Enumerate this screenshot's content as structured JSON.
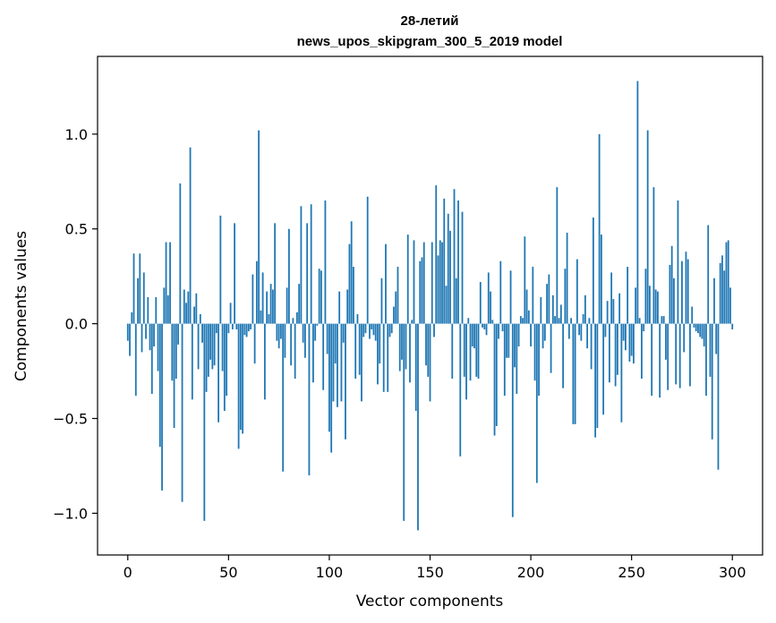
{
  "chart_data": {
    "type": "bar",
    "title_line1": "28-летий",
    "title_line2": "news_upos_skipgram_300_5_2019 model",
    "xlabel": "Vector components",
    "ylabel": "Components values",
    "xlim": [
      -15,
      315
    ],
    "ylim": [
      -1.22,
      1.41
    ],
    "xticks": [
      0,
      50,
      100,
      150,
      200,
      250,
      300
    ],
    "xtick_labels": [
      "0",
      "50",
      "100",
      "150",
      "200",
      "250",
      "300"
    ],
    "yticks": [
      -1.0,
      -0.5,
      0.0,
      0.5,
      1.0
    ],
    "ytick_labels": [
      "−1.0",
      "−0.5",
      "0.0",
      "0.5",
      "1.0"
    ],
    "bar_color": "#1f77b4",
    "grid": false,
    "values": [
      -0.09,
      -0.17,
      0.06,
      0.37,
      -0.38,
      0.24,
      0.37,
      -0.15,
      0.27,
      -0.08,
      0.14,
      -0.14,
      -0.37,
      -0.12,
      0.14,
      -0.25,
      -0.65,
      -0.88,
      0.19,
      0.43,
      0.15,
      0.43,
      -0.3,
      -0.55,
      -0.29,
      -0.11,
      0.74,
      -0.94,
      0.18,
      0.11,
      0.17,
      0.93,
      -0.4,
      0.09,
      0.16,
      -0.24,
      0.05,
      -0.1,
      -1.04,
      -0.36,
      -0.28,
      -0.19,
      -0.24,
      -0.22,
      -0.05,
      -0.52,
      0.57,
      -0.25,
      -0.46,
      -0.38,
      -0.05,
      0.11,
      -0.03,
      0.53,
      -0.03,
      -0.66,
      -0.56,
      -0.58,
      -0.06,
      -0.07,
      -0.04,
      -0.03,
      0.26,
      -0.21,
      0.33,
      1.02,
      0.07,
      0.27,
      -0.4,
      0.17,
      0.05,
      0.21,
      0.18,
      0.53,
      -0.09,
      -0.13,
      -0.08,
      -0.78,
      -0.18,
      0.19,
      0.5,
      -0.22,
      0.03,
      -0.29,
      0.06,
      0.21,
      0.62,
      -0.1,
      -0.18,
      0.53,
      -0.8,
      0.63,
      -0.31,
      -0.09,
      -0.01,
      0.29,
      0.28,
      -0.35,
      0.65,
      -0.16,
      -0.57,
      -0.68,
      -0.41,
      -0.21,
      -0.44,
      0.17,
      -0.41,
      -0.1,
      -0.61,
      0.18,
      0.42,
      0.54,
      0.3,
      -0.29,
      0.05,
      -0.27,
      -0.41,
      -0.07,
      -0.05,
      0.67,
      -0.08,
      -0.03,
      -0.06,
      -0.09,
      -0.32,
      -0.21,
      0.24,
      -0.36,
      0.42,
      -0.36,
      -0.07,
      -0.05,
      0.09,
      0.17,
      0.3,
      -0.25,
      -0.19,
      -1.04,
      -0.24,
      0.47,
      -0.31,
      0.02,
      0.44,
      -0.46,
      -1.09,
      0.33,
      0.35,
      0.43,
      -0.22,
      -0.28,
      -0.41,
      0.43,
      -0.07,
      0.73,
      0.36,
      0.44,
      0.43,
      0.66,
      0.2,
      0.58,
      0.49,
      -0.29,
      0.71,
      0.24,
      0.65,
      -0.7,
      0.59,
      -0.28,
      -0.4,
      0.03,
      -0.3,
      -0.12,
      -0.13,
      -0.28,
      -0.29,
      0.22,
      -0.02,
      -0.03,
      -0.06,
      0.27,
      0.17,
      0.02,
      -0.59,
      -0.54,
      -0.08,
      0.33,
      -0.04,
      -0.38,
      -0.18,
      -0.18,
      0.28,
      -1.02,
      -0.23,
      -0.37,
      -0.12,
      0.04,
      0.03,
      0.46,
      0.18,
      0.07,
      -0.12,
      0.3,
      -0.3,
      -0.84,
      -0.38,
      0.14,
      -0.13,
      -0.09,
      0.21,
      0.26,
      -0.26,
      0.15,
      0.04,
      0.72,
      0.03,
      0.1,
      -0.34,
      0.29,
      0.48,
      -0.08,
      0.03,
      -0.53,
      -0.53,
      0.34,
      -0.06,
      -0.09,
      0.05,
      0.15,
      -0.13,
      0.03,
      -0.24,
      0.56,
      -0.6,
      -0.55,
      1.0,
      0.47,
      -0.48,
      -0.07,
      0.12,
      -0.31,
      0.27,
      0.13,
      -0.33,
      -0.27,
      0.16,
      -0.52,
      -0.09,
      -0.14,
      0.3,
      -0.2,
      -0.17,
      -0.21,
      0.19,
      1.28,
      0.03,
      -0.29,
      -0.04,
      0.29,
      1.02,
      0.2,
      -0.38,
      0.72,
      0.18,
      0.17,
      -0.39,
      0.04,
      0.04,
      -0.19,
      -0.35,
      0.31,
      0.41,
      0.24,
      -0.32,
      0.65,
      -0.34,
      0.33,
      -0.15,
      0.38,
      0.34,
      -0.33,
      0.09,
      -0.02,
      -0.04,
      -0.05,
      -0.07,
      -0.08,
      -0.12,
      -0.38,
      0.52,
      -0.28,
      -0.61,
      0.24,
      -0.16,
      -0.77,
      0.32,
      0.36,
      0.28,
      0.43,
      0.44,
      0.19,
      -0.03
    ]
  }
}
